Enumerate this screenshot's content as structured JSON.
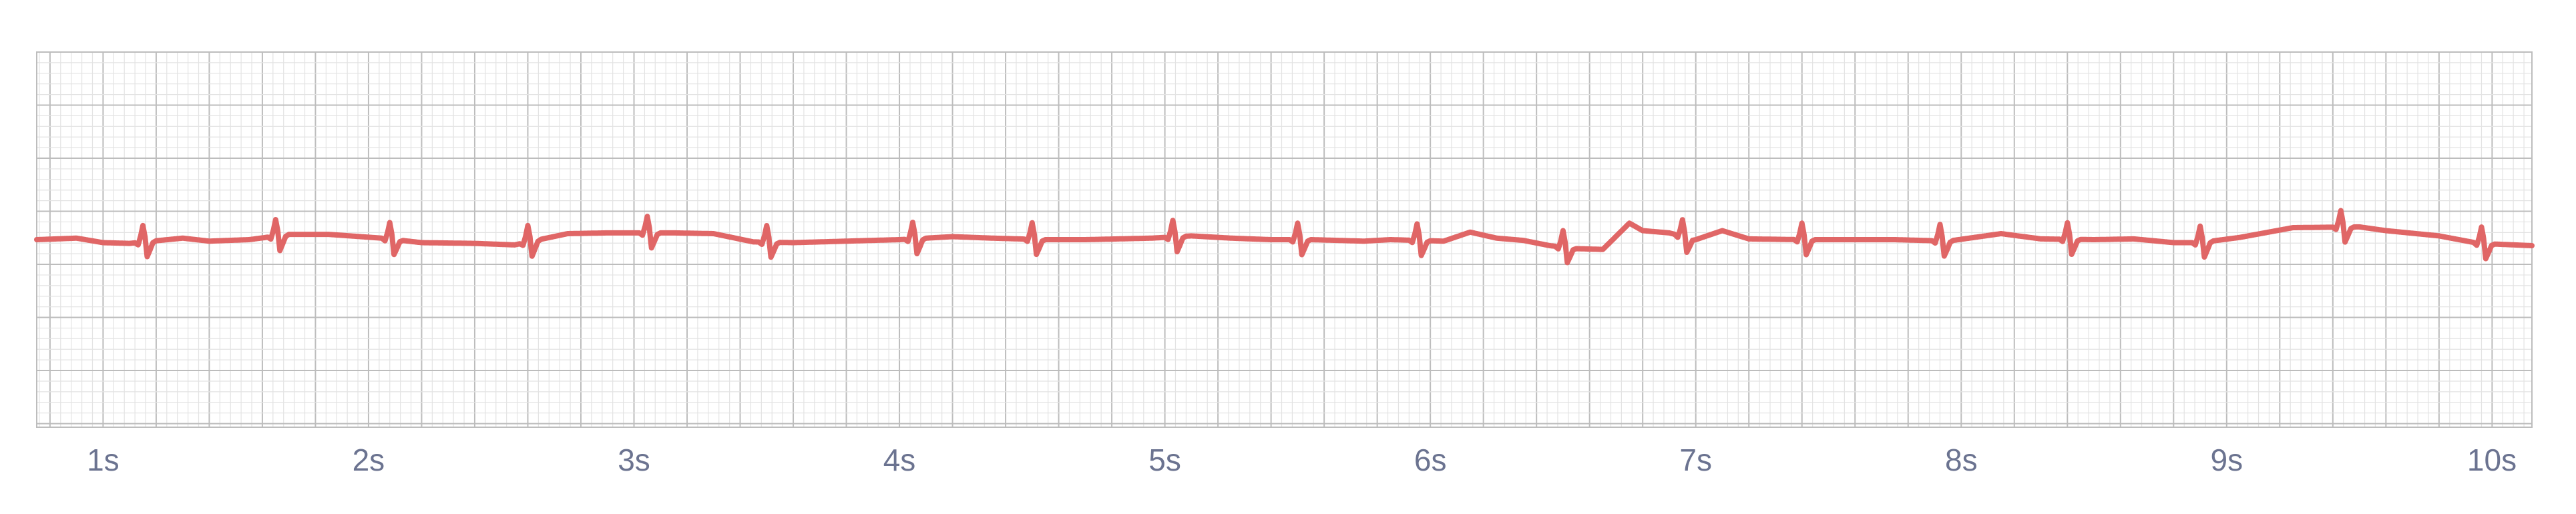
{
  "colors": {
    "trace": "#e06666",
    "grid_minor": "#e3e3e3",
    "grid_major": "#bdbdbd",
    "tick_label": "#6b7390",
    "background": "#ffffff"
  },
  "chart_data": {
    "type": "line",
    "title": "",
    "xlabel": "",
    "ylabel": "",
    "xlim": [
      0.75,
      10.15
    ],
    "ylim": [
      -2.5,
      2.5
    ],
    "grid": "ecg-paper (minor 0.04s, major 0.2s)",
    "legend": "none",
    "tick_labels": [
      "1s",
      "2s",
      "3s",
      "4s",
      "5s",
      "6s",
      "7s",
      "8s",
      "9s",
      "10s"
    ],
    "tick_values": [
      1,
      2,
      3,
      4,
      5,
      6,
      7,
      8,
      9,
      10
    ],
    "series": [
      {
        "baseline": [
          [
            0.75,
            0.0
          ],
          [
            0.9,
            0.02
          ],
          [
            1.0,
            -0.04
          ],
          [
            1.1,
            -0.05
          ],
          [
            1.3,
            0.02
          ],
          [
            1.4,
            -0.02
          ],
          [
            1.55,
            0.0
          ],
          [
            1.7,
            0.07
          ],
          [
            1.85,
            0.07
          ],
          [
            2.05,
            0.02
          ],
          [
            2.2,
            -0.04
          ],
          [
            2.4,
            -0.05
          ],
          [
            2.55,
            -0.07
          ],
          [
            2.75,
            0.08
          ],
          [
            2.9,
            0.09
          ],
          [
            3.15,
            0.09
          ],
          [
            3.3,
            0.08
          ],
          [
            3.45,
            -0.03
          ],
          [
            3.6,
            -0.04
          ],
          [
            3.8,
            -0.02
          ],
          [
            4.0,
            0.0
          ],
          [
            4.2,
            0.04
          ],
          [
            4.35,
            0.02
          ],
          [
            4.55,
            0.0
          ],
          [
            4.7,
            0.0
          ],
          [
            4.95,
            0.02
          ],
          [
            5.1,
            0.05
          ],
          [
            5.25,
            0.02
          ],
          [
            5.4,
            0.0
          ],
          [
            5.55,
            0.0
          ],
          [
            5.75,
            -0.02
          ],
          [
            5.85,
            0.0
          ],
          [
            6.05,
            -0.02
          ],
          [
            6.15,
            0.1
          ],
          [
            6.25,
            0.02
          ],
          [
            6.35,
            -0.01
          ],
          [
            6.45,
            -0.08
          ],
          [
            6.55,
            -0.12
          ],
          [
            6.65,
            -0.13
          ],
          [
            6.75,
            0.22
          ],
          [
            6.8,
            0.12
          ],
          [
            6.9,
            0.09
          ],
          [
            7.0,
            0.0
          ],
          [
            7.1,
            0.12
          ],
          [
            7.2,
            0.01
          ],
          [
            7.4,
            0.0
          ],
          [
            7.6,
            0.0
          ],
          [
            7.75,
            0.0
          ],
          [
            7.95,
            -0.02
          ],
          [
            8.15,
            0.08
          ],
          [
            8.3,
            0.01
          ],
          [
            8.5,
            0.0
          ],
          [
            8.65,
            0.01
          ],
          [
            8.8,
            -0.04
          ],
          [
            8.9,
            -0.04
          ],
          [
            9.05,
            0.03
          ],
          [
            9.25,
            0.16
          ],
          [
            9.5,
            0.17
          ],
          [
            9.6,
            0.12
          ],
          [
            9.8,
            0.05
          ],
          [
            9.95,
            -0.05
          ],
          [
            10.15,
            -0.08
          ]
        ],
        "beats": [
          1.15,
          1.65,
          2.08,
          2.6,
          3.05,
          3.5,
          4.05,
          4.5,
          5.03,
          5.5,
          5.95,
          6.5,
          6.95,
          7.4,
          7.92,
          8.4,
          8.9,
          9.43,
          9.96
        ],
        "beat_peak": 0.22,
        "beat_trough": -0.2
      }
    ]
  }
}
